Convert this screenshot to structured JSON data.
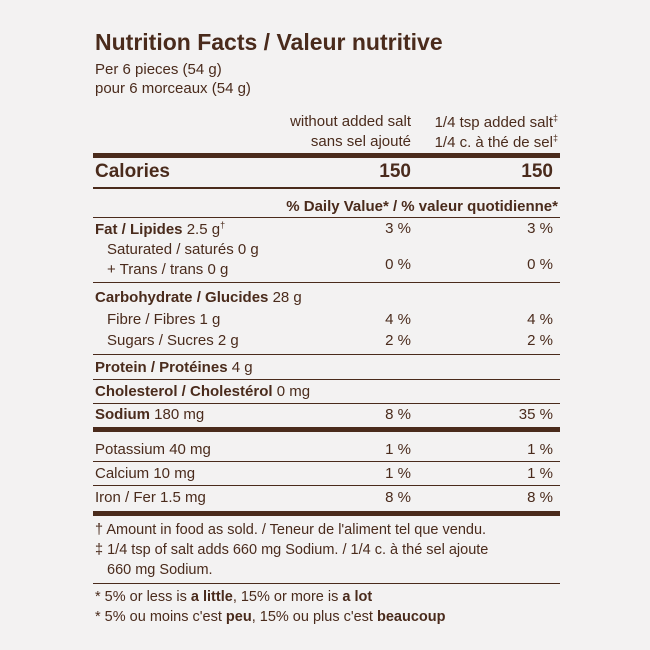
{
  "title": "Nutrition Facts / Valeur nutritive",
  "serving": {
    "en": "Per 6 pieces (54 g)",
    "fr": "pour 6 morceaux (54 g)"
  },
  "columns": [
    {
      "en": "without added salt",
      "fr": "sans sel ajouté"
    },
    {
      "en": "1/4 tsp added salt",
      "fr": "1/4 c. à thé de sel",
      "note": "‡"
    }
  ],
  "calories": {
    "label": "Calories",
    "values": [
      "150",
      "150"
    ]
  },
  "dv_header": "% Daily Value* / % valeur quotidienne*",
  "rows": [
    {
      "name": "Fat / Lipides",
      "amount": "2.5 g",
      "note": "†",
      "values": [
        "3 %",
        "3 %"
      ]
    },
    {
      "name": "Saturated / saturés 0 g"
    },
    {
      "name": "+ Trans / trans 0 g",
      "values": [
        "0 %",
        "0 %"
      ]
    },
    {
      "name": "Carbohydrate / Glucides",
      "amount": "28 g"
    },
    {
      "name": "Fibre / Fibres 1 g",
      "values": [
        "4 %",
        "4 %"
      ]
    },
    {
      "name": "Sugars / Sucres 2 g",
      "values": [
        "2 %",
        "2 %"
      ]
    },
    {
      "name": "Protein / Protéines",
      "amount": "4 g"
    },
    {
      "name": "Cholesterol / Cholestérol",
      "amount": "0 mg"
    },
    {
      "name": "Sodium",
      "amount": "180 mg",
      "values": [
        "8 %",
        "35 %"
      ]
    },
    {
      "name": "Potassium 40 mg",
      "values": [
        "1 %",
        "1 %"
      ]
    },
    {
      "name": "Calcium 10 mg",
      "values": [
        "1 %",
        "1 %"
      ]
    },
    {
      "name": "Iron / Fer 1.5 mg",
      "values": [
        "8 %",
        "8 %"
      ]
    }
  ],
  "footnotes": [
    {
      "mark": "†",
      "text": "Amount in food as sold. / Teneur de l'aliment tel que vendu."
    },
    {
      "mark": "‡",
      "text": "1/4 tsp of salt adds 660 mg Sodium. / 1/4 c. à thé sel ajoute",
      "text2": "660 mg Sodium."
    }
  ],
  "dv_notes": [
    [
      "* 5% or less is ",
      "a little",
      ", 15% or more is ",
      "a lot"
    ],
    [
      "* 5% ou moins c'est ",
      "peu",
      ", 15% ou plus c'est ",
      "beaucoup"
    ]
  ]
}
